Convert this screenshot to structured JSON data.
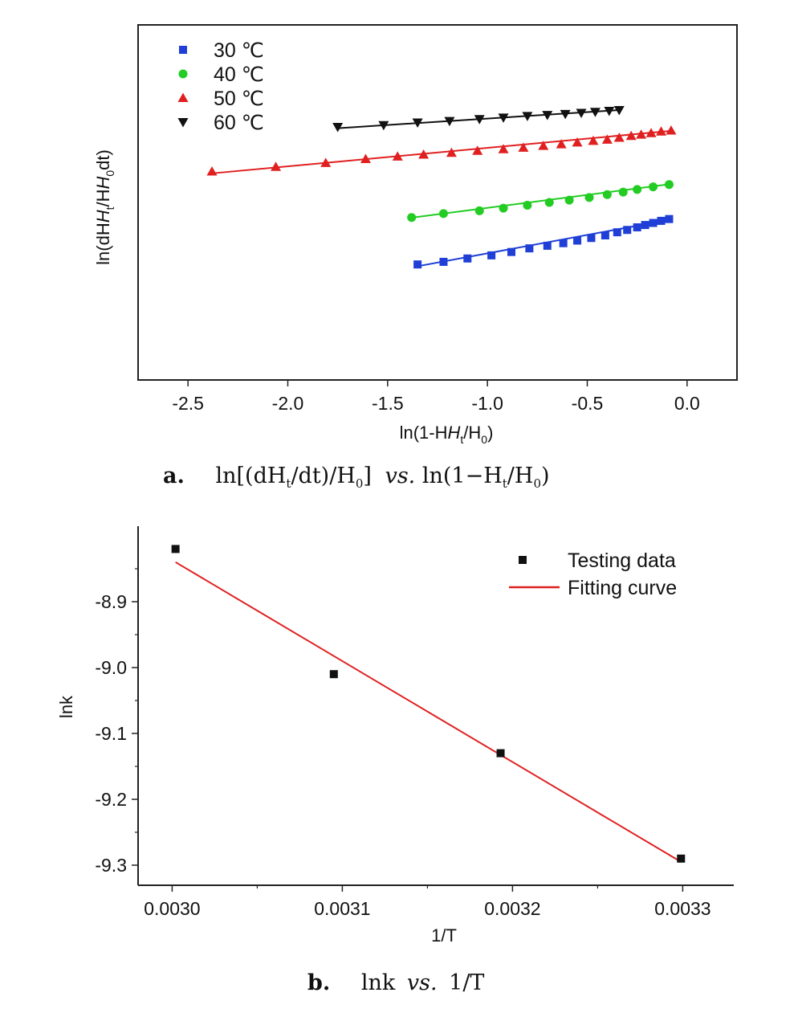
{
  "chart_data": [
    {
      "type": "scatter",
      "panel_label": "a.",
      "caption_before_vs": "ln[(dH",
      "caption_sub1": "t",
      "caption_mid": "/dt)/H",
      "caption_sub2": "0",
      "caption_close": "]",
      "caption_vs": "vs.",
      "caption_after_vs": "ln(1−H",
      "caption_sub3": "t",
      "caption_mid2": "/H",
      "caption_sub4": "0",
      "caption_end": ")",
      "xlabel": "ln(1-H",
      "xlabel_sub1": "t",
      "xlabel_mid": "/H",
      "xlabel_sub2": "0",
      "xlabel_end": ")",
      "ylabel": "ln(dH",
      "ylabel_sub1": "t",
      "ylabel_mid": "/H",
      "ylabel_sub2": "0",
      "ylabel_end": "dt)",
      "xlim": [
        -2.75,
        0.25
      ],
      "ylim": [
        0,
        1
      ],
      "xticks": [
        -2.5,
        -2.0,
        -1.5,
        -1.0,
        -0.5,
        0.0
      ],
      "xtick_labels": [
        "-2.5",
        "-2.0",
        "-1.5",
        "-1.0",
        "-0.5",
        "0.0"
      ],
      "y_ticks_labeled": false,
      "legend_position": "top-left",
      "series": [
        {
          "name": "30 ℃",
          "marker": "square",
          "color": "#1f3fd6",
          "x": [
            -1.35,
            -1.22,
            -1.1,
            -0.98,
            -0.88,
            -0.79,
            -0.7,
            -0.62,
            -0.55,
            -0.48,
            -0.41,
            -0.35,
            -0.3,
            -0.25,
            -0.21,
            -0.17,
            -0.13,
            -0.09
          ],
          "y": [
            0.405,
            0.415,
            0.428,
            0.44,
            0.453,
            0.467,
            0.477,
            0.487,
            0.497,
            0.507,
            0.517,
            0.529,
            0.538,
            0.548,
            0.557,
            0.565,
            0.573,
            0.58
          ],
          "fit": [
            [
              -1.35,
              0.398
            ],
            [
              -0.09,
              0.577
            ]
          ]
        },
        {
          "name": "40 ℃",
          "marker": "circle",
          "color": "#22cc22",
          "x": [
            -1.38,
            -1.22,
            -1.04,
            -0.92,
            -0.8,
            -0.69,
            -0.59,
            -0.49,
            -0.4,
            -0.32,
            -0.25,
            -0.17,
            -0.09
          ],
          "y": [
            0.586,
            0.601,
            0.612,
            0.622,
            0.633,
            0.644,
            0.653,
            0.663,
            0.674,
            0.684,
            0.694,
            0.704,
            0.713
          ],
          "fit": [
            [
              -1.38,
              0.585
            ],
            [
              -0.09,
              0.714
            ]
          ]
        },
        {
          "name": "50 ℃",
          "marker": "triangle-up",
          "color": "#e02020",
          "x": [
            -2.38,
            -2.06,
            -1.81,
            -1.61,
            -1.45,
            -1.32,
            -1.18,
            -1.05,
            -0.92,
            -0.82,
            -0.72,
            -0.63,
            -0.55,
            -0.47,
            -0.4,
            -0.34,
            -0.28,
            -0.23,
            -0.18,
            -0.13,
            -0.08
          ],
          "y": [
            0.763,
            0.781,
            0.796,
            0.811,
            0.821,
            0.828,
            0.835,
            0.843,
            0.849,
            0.855,
            0.862,
            0.868,
            0.875,
            0.881,
            0.886,
            0.893,
            0.9,
            0.905,
            0.911,
            0.917,
            0.921
          ],
          "fit": [
            [
              -2.38,
              0.756
            ],
            [
              -0.08,
              0.92
            ]
          ]
        },
        {
          "name": "60 ℃",
          "marker": "triangle-down",
          "color": "#111111",
          "x": [
            -1.75,
            -1.52,
            -1.35,
            -1.19,
            -1.04,
            -0.92,
            -0.8,
            -0.7,
            -0.61,
            -0.53,
            -0.46,
            -0.39,
            -0.34
          ],
          "y": [
            0.935,
            0.942,
            0.952,
            0.958,
            0.965,
            0.971,
            0.977,
            0.981,
            0.985,
            0.989,
            0.993,
            0.997,
            1.0
          ],
          "fit": [
            [
              -1.75,
              0.93
            ],
            [
              -0.34,
              1.0
            ]
          ]
        }
      ]
    },
    {
      "type": "scatter",
      "panel_label": "b.",
      "caption_before_vs": "lnk",
      "caption_vs": "vs.",
      "caption_after_vs": "1/T",
      "xlabel": "1/T",
      "ylabel": "lnk",
      "xlim": [
        0.00298,
        0.00333
      ],
      "ylim": [
        -9.33,
        -8.81
      ],
      "xticks": [
        0.003,
        0.0031,
        0.0032,
        0.0033
      ],
      "xtick_labels": [
        "0.0030",
        "0.0031",
        "0.0032",
        "0.0033"
      ],
      "yticks": [
        -8.9,
        -9.0,
        -9.1,
        -9.2,
        -9.3
      ],
      "ytick_labels": [
        "-8.9",
        "-9.0",
        "-9.1",
        "-9.2",
        "-9.3"
      ],
      "legend_position": "top-right",
      "series": [
        {
          "name": "Testing data",
          "marker": "square",
          "color": "#111111",
          "x": [
            0.003002,
            0.003095,
            0.003193,
            0.003299
          ],
          "y": [
            -8.82,
            -9.01,
            -9.13,
            -9.29
          ]
        },
        {
          "name": "Fitting curve",
          "line": true,
          "color": "#e02020",
          "x": [
            0.003002,
            0.003299
          ],
          "y": [
            -8.84,
            -9.295
          ]
        }
      ]
    }
  ]
}
